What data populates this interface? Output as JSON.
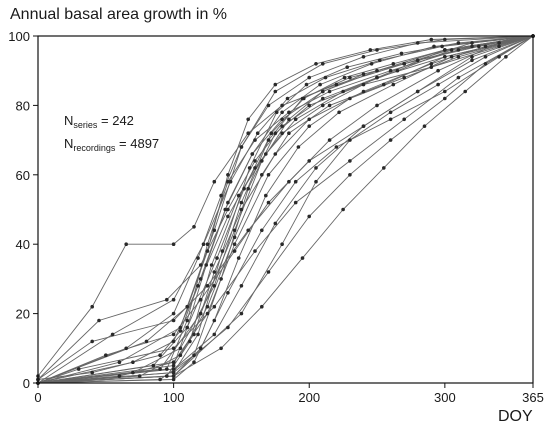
{
  "chart_data": {
    "type": "line",
    "title": "",
    "ylabel": "Annual basal area growth in %",
    "xlabel": "DOY",
    "xlim": [
      0,
      365
    ],
    "ylim": [
      0,
      100
    ],
    "xticks": [
      0,
      100,
      200,
      300,
      365
    ],
    "yticks": [
      0,
      20,
      40,
      60,
      80,
      100
    ],
    "grid": false,
    "annotation": {
      "line1": {
        "symbol": "N",
        "subscript": "series",
        "text": " = 242"
      },
      "line2": {
        "symbol": "N",
        "subscript": "recordings",
        "text": " = 4897"
      }
    },
    "colors": {
      "lines": "#666666",
      "points": "#2a2a2a",
      "axis": "#111111"
    },
    "series_shape": {
      "count_shown": 242,
      "description": "Cumulative growth curves, each rising from 0 at DOY 0 to 100 at DOY 365; dense band inflecting sharply between DOY 100 and 180"
    },
    "series": [
      {
        "x": [
          0,
          40,
          90,
          105,
          120,
          140,
          160,
          180,
          210,
          250,
          300,
          365
        ],
        "y": [
          1,
          3,
          8,
          15,
          30,
          48,
          62,
          72,
          80,
          88,
          96,
          100
        ]
      },
      {
        "x": [
          0,
          60,
          100,
          115,
          130,
          150,
          175,
          200,
          240,
          290,
          330,
          365
        ],
        "y": [
          0,
          2,
          6,
          14,
          32,
          50,
          66,
          76,
          84,
          92,
          97,
          100
        ]
      },
      {
        "x": [
          0,
          95,
          110,
          125,
          140,
          160,
          185,
          215,
          260,
          310,
          365
        ],
        "y": [
          0,
          4,
          18,
          40,
          58,
          70,
          78,
          84,
          90,
          96,
          100
        ]
      },
      {
        "x": [
          0,
          50,
          100,
          120,
          145,
          170,
          200,
          240,
          280,
          320,
          365
        ],
        "y": [
          0,
          8,
          14,
          24,
          38,
          52,
          64,
          74,
          84,
          94,
          100
        ]
      },
      {
        "x": [
          0,
          70,
          105,
          130,
          150,
          170,
          195,
          230,
          270,
          320,
          365
        ],
        "y": [
          0,
          3,
          10,
          28,
          52,
          70,
          82,
          88,
          92,
          97,
          100
        ]
      },
      {
        "x": [
          0,
          40,
          65,
          100,
          115,
          130,
          155,
          180,
          220,
          270,
          320,
          365
        ],
        "y": [
          2,
          22,
          40,
          40,
          45,
          58,
          72,
          80,
          86,
          92,
          98,
          100
        ]
      },
      {
        "x": [
          0,
          100,
          120,
          140,
          165,
          190,
          220,
          260,
          300,
          340,
          365
        ],
        "y": [
          0,
          2,
          10,
          26,
          44,
          58,
          68,
          76,
          84,
          94,
          100
        ]
      },
      {
        "x": [
          0,
          80,
          110,
          130,
          150,
          175,
          210,
          250,
          300,
          365
        ],
        "y": [
          0,
          12,
          22,
          44,
          68,
          84,
          92,
          96,
          99,
          100
        ]
      },
      {
        "x": [
          0,
          45,
          95,
          120,
          140,
          160,
          180,
          210,
          250,
          300,
          365
        ],
        "y": [
          1,
          18,
          24,
          34,
          50,
          64,
          74,
          82,
          88,
          94,
          100
        ]
      },
      {
        "x": [
          0,
          100,
          125,
          145,
          170,
          200,
          230,
          270,
          310,
          365
        ],
        "y": [
          0,
          6,
          20,
          40,
          60,
          74,
          82,
          88,
          94,
          100
        ]
      },
      {
        "x": [
          0,
          90,
          115,
          135,
          155,
          175,
          200,
          240,
          290,
          340,
          365
        ],
        "y": [
          0,
          1,
          8,
          30,
          56,
          72,
          80,
          86,
          91,
          97,
          100
        ]
      },
      {
        "x": [
          0,
          30,
          100,
          130,
          160,
          190,
          230,
          270,
          310,
          365
        ],
        "y": [
          0,
          4,
          10,
          22,
          38,
          52,
          64,
          76,
          88,
          100
        ]
      },
      {
        "x": [
          0,
          60,
          105,
          125,
          140,
          155,
          175,
          205,
          245,
          290,
          365
        ],
        "y": [
          0,
          6,
          16,
          38,
          60,
          76,
          86,
          92,
          96,
          99,
          100
        ]
      },
      {
        "x": [
          0,
          100,
          140,
          170,
          200,
          230,
          260,
          300,
          330,
          365
        ],
        "y": [
          0,
          3,
          16,
          32,
          48,
          60,
          70,
          82,
          92,
          100
        ]
      },
      {
        "x": [
          0,
          95,
          112,
          128,
          148,
          168,
          190,
          225,
          265,
          305,
          365
        ],
        "y": [
          0,
          2,
          12,
          34,
          54,
          66,
          76,
          84,
          90,
          96,
          100
        ]
      },
      {
        "x": [
          0,
          65,
          100,
          118,
          135,
          150,
          170,
          200,
          240,
          280,
          365
        ],
        "y": [
          0,
          10,
          20,
          36,
          54,
          68,
          80,
          88,
          94,
          98,
          100
        ]
      },
      {
        "x": [
          0,
          100,
          130,
          150,
          175,
          205,
          240,
          280,
          320,
          365
        ],
        "y": [
          0,
          4,
          14,
          28,
          46,
          62,
          74,
          84,
          93,
          100
        ]
      },
      {
        "x": [
          0,
          85,
          110,
          132,
          152,
          172,
          196,
          226,
          262,
          300,
          365
        ],
        "y": [
          0,
          5,
          16,
          36,
          56,
          72,
          82,
          88,
          92,
          96,
          100
        ]
      },
      {
        "x": [
          0,
          40,
          100,
          125,
          155,
          185,
          215,
          250,
          295,
          340,
          365
        ],
        "y": [
          1,
          12,
          18,
          28,
          44,
          58,
          70,
          80,
          90,
          98,
          100
        ]
      },
      {
        "x": [
          0,
          100,
          118,
          136,
          156,
          176,
          198,
          228,
          268,
          310,
          365
        ],
        "y": [
          0,
          3,
          14,
          38,
          62,
          78,
          86,
          91,
          95,
          98,
          100
        ]
      },
      {
        "x": [
          0,
          75,
          105,
          125,
          145,
          165,
          185,
          215,
          255,
          300,
          365
        ],
        "y": [
          0,
          2,
          8,
          22,
          42,
          60,
          72,
          80,
          86,
          94,
          100
        ]
      },
      {
        "x": [
          0,
          100,
          150,
          180,
          205,
          230,
          260,
          295,
          330,
          365
        ],
        "y": [
          0,
          2,
          20,
          40,
          58,
          70,
          78,
          86,
          94,
          100
        ]
      },
      {
        "x": [
          0,
          55,
          100,
          122,
          142,
          162,
          184,
          212,
          252,
          298,
          365
        ],
        "y": [
          0,
          14,
          24,
          40,
          58,
          72,
          82,
          88,
          93,
          97,
          100
        ]
      },
      {
        "x": [
          0,
          100,
          115,
          130,
          148,
          168,
          192,
          222,
          262,
          305,
          365
        ],
        "y": [
          0,
          1,
          6,
          18,
          36,
          54,
          68,
          78,
          86,
          94,
          100
        ]
      },
      {
        "x": [
          0,
          90,
          120,
          145,
          165,
          185,
          210,
          240,
          280,
          325,
          365
        ],
        "y": [
          0,
          4,
          20,
          44,
          64,
          76,
          84,
          89,
          93,
          97,
          100
        ]
      },
      {
        "x": [
          0,
          100,
          135,
          165,
          195,
          225,
          255,
          285,
          315,
          345,
          365
        ],
        "y": [
          0,
          2,
          10,
          22,
          36,
          50,
          62,
          74,
          84,
          94,
          100
        ]
      },
      {
        "x": [
          0,
          70,
          100,
          118,
          138,
          158,
          180,
          208,
          246,
          292,
          365
        ],
        "y": [
          0,
          6,
          12,
          28,
          50,
          66,
          78,
          86,
          92,
          97,
          100
        ]
      },
      {
        "x": [
          0,
          100,
          110,
          124,
          140,
          158,
          180,
          210,
          250,
          300,
          365
        ],
        "y": [
          0,
          5,
          16,
          34,
          52,
          66,
          76,
          84,
          90,
          96,
          100
        ]
      }
    ]
  }
}
